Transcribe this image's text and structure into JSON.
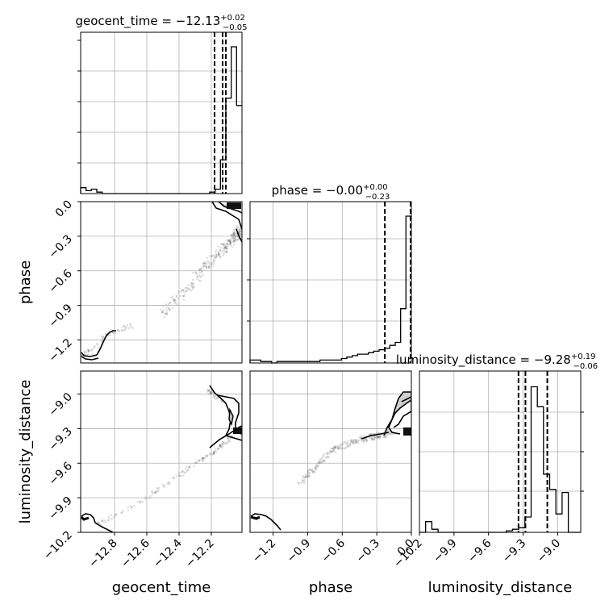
{
  "chart_data": {
    "type": "corner",
    "parameters": [
      "geocent_time",
      "phase",
      "luminosity_distance"
    ],
    "ranges": {
      "geocent_time": [
        -13.01,
        -12.01
      ],
      "phase": [
        -1.4,
        0.0
      ],
      "luminosity_distance": [
        -10.2,
        -8.8
      ]
    },
    "axis_labels": {
      "x": [
        "geocent_time",
        "phase",
        "luminosity_distance"
      ],
      "y": [
        "phase",
        "luminosity_distance"
      ]
    },
    "ticks": {
      "geocent_time": [
        "−12.8",
        "−12.6",
        "−12.4",
        "−12.2"
      ],
      "geocent_time_values": [
        -12.8,
        -12.6,
        -12.4,
        -12.2
      ],
      "phase_x": [
        "−1.2",
        "−0.9",
        "−0.6",
        "−0.3",
        "0.0"
      ],
      "phase_y": [
        "0.0",
        "−0.3",
        "−0.6",
        "−0.9",
        "−1.2"
      ],
      "phase_values_x": [
        -1.2,
        -0.9,
        -0.6,
        -0.3,
        0.0
      ],
      "phase_values_y": [
        0.0,
        -0.3,
        -0.6,
        -0.9,
        -1.2
      ],
      "luminosity_distance_x": [
        "−10.2",
        "−9.9",
        "−9.6",
        "−9.3",
        "−9.0"
      ],
      "luminosity_distance_y": [
        "−9.0",
        "−9.3",
        "−9.6",
        "−9.9",
        "−10.2"
      ],
      "luminosity_distance_values_x": [
        -10.2,
        -9.9,
        -9.6,
        -9.3,
        -9.0
      ],
      "luminosity_distance_values_y": [
        -9.0,
        -9.3,
        -9.6,
        -9.9,
        -10.2
      ]
    },
    "titles": {
      "geocent_time": {
        "main": "geocent_time = −12.13",
        "sup": "+0.02",
        "sub": "−0.05"
      },
      "phase": {
        "main": "phase = −0.00",
        "sup": "+0.00",
        "sub": "−0.23"
      },
      "luminosity_distance": {
        "main": "luminosity_distance = −9.28",
        "sup": "+0.19",
        "sub": "−0.06"
      }
    },
    "quantiles": {
      "geocent_time": [
        -12.18,
        -12.13,
        -12.11
      ],
      "phase": [
        -0.23,
        -0.0,
        0.0
      ],
      "luminosity_distance": [
        -9.34,
        -9.28,
        -9.09
      ]
    },
    "histograms": {
      "geocent_time": [
        0.04,
        0.02,
        0.03,
        0.01,
        0,
        0,
        0,
        0,
        0,
        0,
        0,
        0,
        0,
        0,
        0,
        0,
        0,
        0,
        0,
        0,
        0,
        0,
        0,
        0,
        0.01,
        0.03,
        0.23,
        0.65,
        1.0,
        0.6
      ],
      "phase": [
        0.02,
        0.02,
        0.01,
        0.01,
        0,
        0.01,
        0.01,
        0.01,
        0.01,
        0.01,
        0.01,
        0.01,
        0.01,
        0.02,
        0.02,
        0.02,
        0.02,
        0.03,
        0.04,
        0.05,
        0.06,
        0.06,
        0.07,
        0.08,
        0.09,
        0.1,
        0.12,
        0.14,
        0.37,
        1.0
      ],
      "luminosity_distance": [
        0.0,
        0.07,
        0.02,
        0,
        0,
        0,
        0,
        0,
        0,
        0,
        0,
        0,
        0,
        0,
        0.01,
        0.02,
        0.03,
        0.1,
        0.95,
        0.82,
        0.38,
        0.28,
        0.12,
        0.26,
        0.0,
        0.0
      ]
    },
    "grid": true,
    "quantile_lines": "dashed"
  }
}
